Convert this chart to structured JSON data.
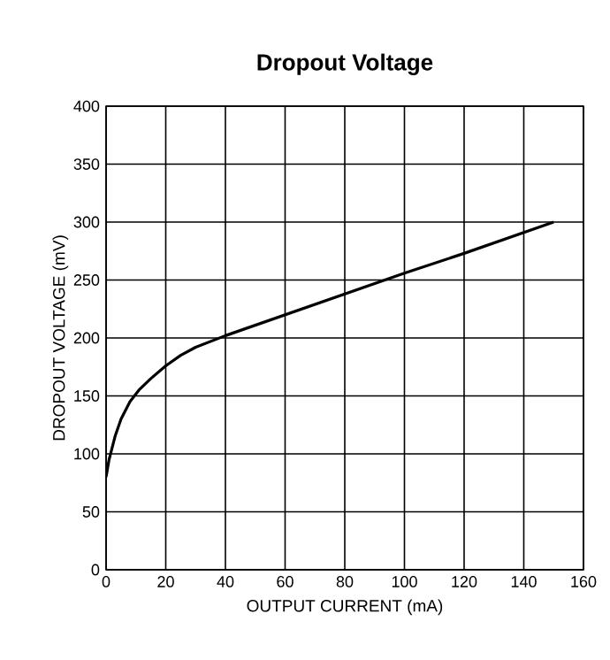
{
  "chart_data": {
    "type": "line",
    "title": "Dropout Voltage",
    "xlabel": "OUTPUT CURRENT (mA)",
    "ylabel": "DROPOUT VOLTAGE (mV)",
    "x": [
      0,
      1,
      3,
      5,
      8,
      11,
      15,
      20,
      25,
      30,
      40,
      60,
      80,
      100,
      120,
      150
    ],
    "series": [
      {
        "color": "#000000",
        "values": [
          80,
          95,
          115,
          130,
          145,
          155,
          165,
          176,
          185,
          192,
          202,
          220,
          238,
          256,
          273,
          300
        ]
      }
    ],
    "xlim": [
      0,
      160
    ],
    "ylim": [
      0,
      400
    ],
    "xticks": [
      0,
      20,
      40,
      60,
      80,
      100,
      120,
      140,
      160
    ],
    "yticks": [
      0,
      50,
      100,
      150,
      200,
      250,
      300,
      350,
      400
    ],
    "grid": true,
    "marker": "none",
    "line_style": "solid"
  }
}
